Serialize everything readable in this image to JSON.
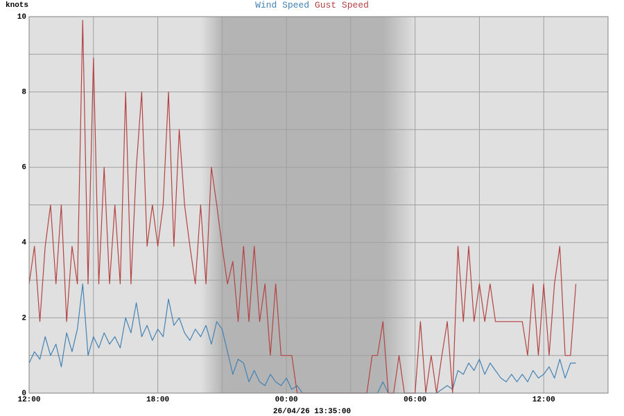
{
  "chart_data": {
    "type": "line",
    "y_label": "knots",
    "x_label": "26/04/26 13:35:00",
    "xlim": [
      0,
      27
    ],
    "xticks": [
      {
        "value": 0,
        "label": "12:00"
      },
      {
        "value": 6,
        "label": "18:00"
      },
      {
        "value": 12,
        "label": "00:00"
      },
      {
        "value": 18,
        "label": "06:00"
      },
      {
        "value": 24,
        "label": "12:00"
      }
    ],
    "xminor": [
      3,
      9,
      15,
      21
    ],
    "ylim": [
      0,
      10
    ],
    "yticks": [
      0,
      2,
      4,
      6,
      8,
      10
    ],
    "yminor": [
      1,
      3,
      5,
      7,
      9
    ],
    "grid": true,
    "x": [
      0,
      0.25,
      0.5,
      0.75,
      1,
      1.25,
      1.5,
      1.75,
      2,
      2.25,
      2.5,
      2.75,
      3,
      3.25,
      3.5,
      3.75,
      4,
      4.25,
      4.5,
      4.75,
      5,
      5.25,
      5.5,
      5.75,
      6,
      6.25,
      6.5,
      6.75,
      7,
      7.25,
      7.5,
      7.75,
      8,
      8.25,
      8.5,
      8.75,
      9,
      9.25,
      9.5,
      9.75,
      10,
      10.25,
      10.5,
      10.75,
      11,
      11.25,
      11.5,
      11.75,
      12,
      12.25,
      12.5,
      12.75,
      13,
      13.25,
      13.5,
      13.75,
      14,
      14.25,
      14.5,
      14.75,
      15,
      15.25,
      15.5,
      15.75,
      16,
      16.25,
      16.5,
      16.75,
      17,
      17.25,
      17.5,
      17.75,
      18,
      18.25,
      18.5,
      18.75,
      19,
      19.25,
      19.5,
      19.75,
      20,
      20.25,
      20.5,
      20.75,
      21,
      21.25,
      21.5,
      21.75,
      22,
      22.25,
      22.5,
      22.75,
      23,
      23.25,
      23.5,
      23.75,
      24,
      24.25,
      24.5,
      24.75,
      25,
      25.25,
      25.5
    ],
    "series": [
      {
        "name": "Wind Speed",
        "color": "#4282b4",
        "values": [
          0.8,
          1.1,
          0.9,
          1.5,
          1.0,
          1.3,
          0.7,
          1.6,
          1.1,
          1.7,
          2.9,
          1.0,
          1.5,
          1.2,
          1.6,
          1.3,
          1.5,
          1.2,
          2.0,
          1.6,
          2.4,
          1.5,
          1.8,
          1.4,
          1.7,
          1.5,
          2.5,
          1.8,
          2.0,
          1.6,
          1.4,
          1.7,
          1.5,
          1.8,
          1.3,
          1.9,
          1.7,
          1.1,
          0.5,
          0.9,
          0.8,
          0.3,
          0.6,
          0.3,
          0.2,
          0.5,
          0.3,
          0.2,
          0.4,
          0.1,
          0.2,
          0,
          0,
          0,
          0,
          0,
          0,
          0,
          0,
          0,
          0,
          0,
          0,
          0,
          0,
          0,
          0.3,
          0,
          0,
          0,
          0,
          0,
          0,
          0,
          0,
          0,
          0,
          0.1,
          0.2,
          0.1,
          0.6,
          0.5,
          0.8,
          0.6,
          0.9,
          0.5,
          0.8,
          0.6,
          0.4,
          0.3,
          0.5,
          0.3,
          0.5,
          0.3,
          0.6,
          0.4,
          0.5,
          0.7,
          0.4,
          0.9,
          0.4,
          0.8,
          0.8
        ]
      },
      {
        "name": "Gust Speed",
        "color": "#b44242",
        "values": [
          2.9,
          3.9,
          1.9,
          3.9,
          5.0,
          2.9,
          5.0,
          1.9,
          3.9,
          2.9,
          9.9,
          2.9,
          8.9,
          2.9,
          6.0,
          2.9,
          5.0,
          2.9,
          8.0,
          2.9,
          6.0,
          8.0,
          3.9,
          5.0,
          3.9,
          5.0,
          8.0,
          3.9,
          7.0,
          5.0,
          3.9,
          2.9,
          5.0,
          2.9,
          6.0,
          5.0,
          3.9,
          2.9,
          3.5,
          1.9,
          3.9,
          1.9,
          3.9,
          1.9,
          2.9,
          1.0,
          2.9,
          1.0,
          1.0,
          1.0,
          0,
          0,
          0,
          0,
          0,
          0,
          0,
          0,
          0,
          0,
          0,
          0,
          0,
          0,
          1.0,
          1.0,
          1.9,
          0,
          0,
          1.0,
          0,
          0,
          0,
          1.9,
          0,
          1.0,
          0,
          1.0,
          1.9,
          0,
          3.9,
          1.9,
          3.9,
          1.9,
          2.9,
          1.9,
          2.9,
          1.9,
          1.9,
          1.9,
          1.9,
          1.9,
          1.9,
          1.0,
          2.9,
          1.0,
          2.9,
          1.0,
          2.9,
          3.9,
          1.0,
          1.0,
          2.9
        ]
      }
    ]
  }
}
